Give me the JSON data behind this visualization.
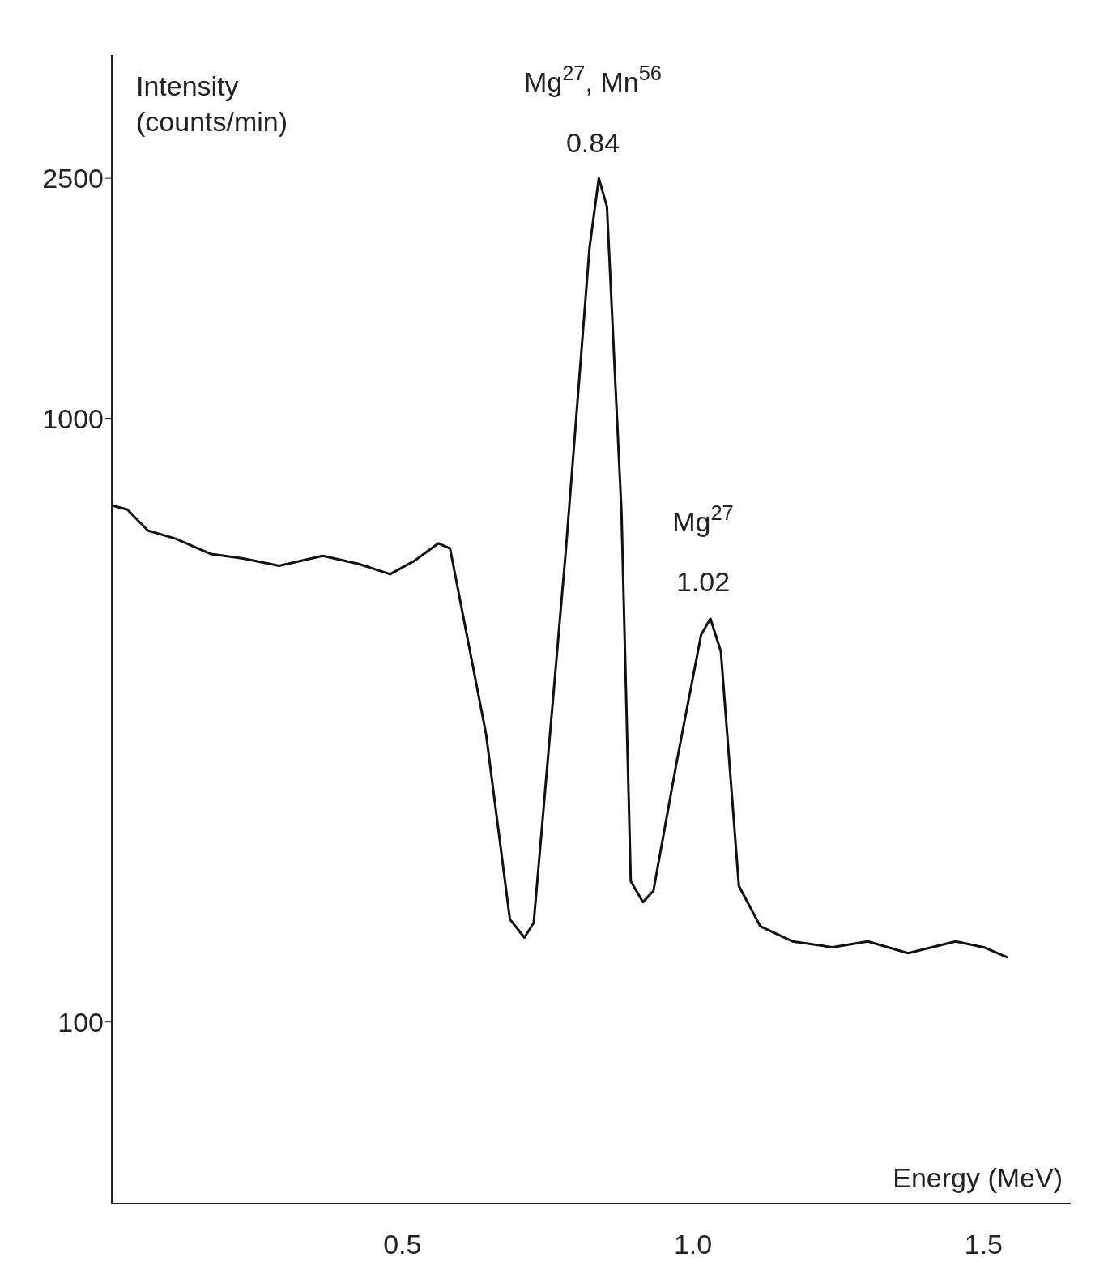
{
  "chart_data": {
    "type": "line",
    "xlabel": "Energy (MeV)",
    "ylabel": "Intensity (counts/min)",
    "x": [
      0.004,
      0.027,
      0.062,
      0.11,
      0.171,
      0.226,
      0.288,
      0.363,
      0.425,
      0.479,
      0.521,
      0.562,
      0.582,
      0.644,
      0.685,
      0.71,
      0.726,
      0.781,
      0.822,
      0.838,
      0.852,
      0.877,
      0.893,
      0.914,
      0.932,
      0.973,
      1.014,
      1.03,
      1.048,
      1.079,
      1.116,
      1.171,
      1.24,
      1.301,
      1.37,
      1.452,
      1.5,
      1.541
    ],
    "series": [
      {
        "color": "#111111",
        "values": [
          716,
          706,
          652,
          632,
          596,
          586,
          570,
          592,
          574,
          552,
          581,
          621,
          609,
          300,
          148,
          138,
          146,
          600,
          1916,
          2500,
          2243,
          701,
          171,
          158,
          165,
          273,
          438,
          466,
          411,
          168,
          144,
          136,
          133,
          136,
          130,
          136,
          133,
          128
        ]
      }
    ],
    "xlim": [
      0,
      1.65
    ],
    "xticks": [
      0.5,
      {
        "value": 1.0,
        "label": "1.0"
      },
      1.5
    ],
    "ylim": [
      50,
      4000
    ],
    "yticks": [
      100,
      1000,
      2500
    ],
    "log": "y",
    "grid": false,
    "legend": false,
    "marker": "none",
    "line_style": "solid",
    "annotations": [
      "Mg$^{27}$, Mn$^{56}$",
      "0.84",
      "Mg$^{27}$",
      "1.02"
    ]
  }
}
